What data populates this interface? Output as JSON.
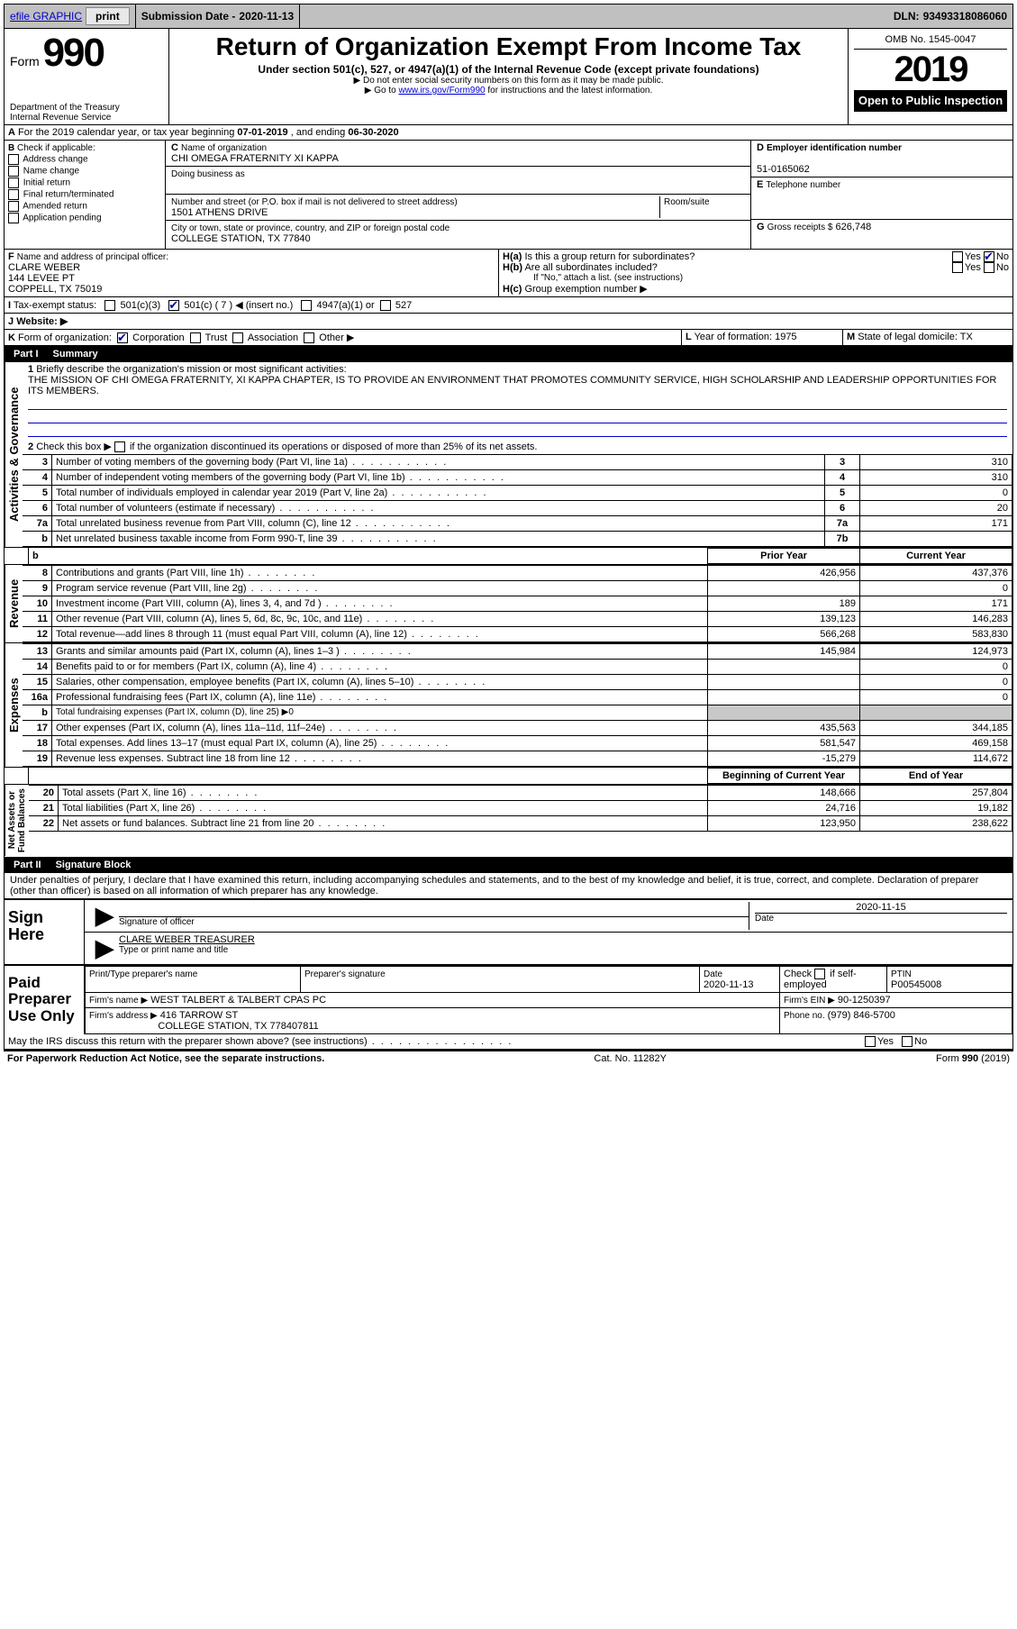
{
  "topbar": {
    "efile": "efile GRAPHIC",
    "print": "print",
    "subdate_label": "Submission Date -",
    "subdate": "2020-11-13",
    "dln_label": "DLN:",
    "dln": "93493318086060"
  },
  "header": {
    "form_label": "Form",
    "form_num": "990",
    "dept": "Department of the Treasury\nInternal Revenue Service",
    "title": "Return of Organization Exempt From Income Tax",
    "sub1": "Under section 501(c), 527, or 4947(a)(1) of the Internal Revenue Code (except private foundations)",
    "sub2": "Do not enter social security numbers on this form as it may be made public.",
    "sub3_pre": "Go to ",
    "sub3_link": "www.irs.gov/Form990",
    "sub3_post": " for instructions and the latest information.",
    "omb": "OMB No. 1545-0047",
    "year": "2019",
    "openpub": "Open to Public Inspection"
  },
  "A": {
    "text_pre": "For the 2019 calendar year, or tax year beginning ",
    "begin": "07-01-2019",
    "text_mid": " , and ending ",
    "end": "06-30-2020"
  },
  "B": {
    "label": "Check if applicable:",
    "opts": {
      "addr": "Address change",
      "name": "Name change",
      "init": "Initial return",
      "final": "Final return/terminated",
      "amend": "Amended return",
      "app": "Application pending"
    }
  },
  "C": {
    "name_label": "Name of organization",
    "name": "CHI OMEGA FRATERNITY XI KAPPA",
    "dba_label": "Doing business as",
    "dba": "",
    "addr_label": "Number and street (or P.O. box if mail is not delivered to street address)",
    "room_label": "Room/suite",
    "addr": "1501 ATHENS DRIVE",
    "city_label": "City or town, state or province, country, and ZIP or foreign postal code",
    "city": "COLLEGE STATION, TX  77840"
  },
  "D": {
    "label": "Employer identification number",
    "val": "51-0165062"
  },
  "E": {
    "label": "Telephone number",
    "val": ""
  },
  "G": {
    "label": "Gross receipts $",
    "val": "626,748"
  },
  "F": {
    "label": "Name and address of principal officer:",
    "name": "CLARE WEBER",
    "addr1": "144 LEVEE PT",
    "addr2": "COPPELL, TX  75019"
  },
  "H": {
    "a": "Is this a group return for subordinates?",
    "b": "Are all subordinates included?",
    "b_note": "If \"No,\" attach a list. (see instructions)",
    "c": "Group exemption number ▶",
    "yes": "Yes",
    "no": "No"
  },
  "I": {
    "label": "Tax-exempt status:",
    "c3": "501(c)(3)",
    "c": "501(c) ( 7 ) ◀ (insert no.)",
    "a1": "4947(a)(1) or",
    "s527": "527"
  },
  "J": {
    "label": "Website: ▶",
    "val": ""
  },
  "K": {
    "label": "Form of organization:",
    "corp": "Corporation",
    "trust": "Trust",
    "assoc": "Association",
    "other": "Other ▶"
  },
  "L": {
    "label": "Year of formation:",
    "val": "1975"
  },
  "M": {
    "label": "State of legal domicile:",
    "val": "TX"
  },
  "part1": {
    "hdr_num": "Part I",
    "hdr_title": "Summary",
    "l1_label": "Briefly describe the organization's mission or most significant activities:",
    "l1_text": "THE MISSION OF CHI OMEGA FRATERNITY, XI KAPPA CHAPTER, IS TO PROVIDE AN ENVIRONMENT THAT PROMOTES COMMUNITY SERVICE, HIGH SCHOLARSHIP AND LEADERSHIP OPPORTUNITIES FOR ITS MEMBERS.",
    "l2": "Check this box ▶        if the organization discontinued its operations or disposed of more than 25% of its net assets.",
    "rows_ag": [
      {
        "n": "3",
        "d": "Number of voting members of the governing body (Part VI, line 1a)",
        "box": "3",
        "v": "310"
      },
      {
        "n": "4",
        "d": "Number of independent voting members of the governing body (Part VI, line 1b)",
        "box": "4",
        "v": "310"
      },
      {
        "n": "5",
        "d": "Total number of individuals employed in calendar year 2019 (Part V, line 2a)",
        "box": "5",
        "v": "0"
      },
      {
        "n": "6",
        "d": "Total number of volunteers (estimate if necessary)",
        "box": "6",
        "v": "20"
      },
      {
        "n": "7a",
        "d": "Total unrelated business revenue from Part VIII, column (C), line 12",
        "box": "7a",
        "v": "171"
      },
      {
        "n": "b",
        "d": "Net unrelated business taxable income from Form 990-T, line 39",
        "box": "7b",
        "v": ""
      }
    ],
    "py": "Prior Year",
    "cy": "Current Year",
    "rows_rev": [
      {
        "n": "8",
        "d": "Contributions and grants (Part VIII, line 1h)",
        "py": "426,956",
        "cy": "437,376"
      },
      {
        "n": "9",
        "d": "Program service revenue (Part VIII, line 2g)",
        "py": "",
        "cy": "0"
      },
      {
        "n": "10",
        "d": "Investment income (Part VIII, column (A), lines 3, 4, and 7d )",
        "py": "189",
        "cy": "171"
      },
      {
        "n": "11",
        "d": "Other revenue (Part VIII, column (A), lines 5, 6d, 8c, 9c, 10c, and 11e)",
        "py": "139,123",
        "cy": "146,283"
      },
      {
        "n": "12",
        "d": "Total revenue—add lines 8 through 11 (must equal Part VIII, column (A), line 12)",
        "py": "566,268",
        "cy": "583,830"
      }
    ],
    "rows_exp": [
      {
        "n": "13",
        "d": "Grants and similar amounts paid (Part IX, column (A), lines 1–3 )",
        "py": "145,984",
        "cy": "124,973"
      },
      {
        "n": "14",
        "d": "Benefits paid to or for members (Part IX, column (A), line 4)",
        "py": "",
        "cy": "0"
      },
      {
        "n": "15",
        "d": "Salaries, other compensation, employee benefits (Part IX, column (A), lines 5–10)",
        "py": "",
        "cy": "0"
      },
      {
        "n": "16a",
        "d": "Professional fundraising fees (Part IX, column (A), line 11e)",
        "py": "",
        "cy": "0"
      },
      {
        "n": "b",
        "d": "Total fundraising expenses (Part IX, column (D), line 25) ▶0",
        "py": "SHADE",
        "cy": "SHADE"
      },
      {
        "n": "17",
        "d": "Other expenses (Part IX, column (A), lines 11a–11d, 11f–24e)",
        "py": "435,563",
        "cy": "344,185"
      },
      {
        "n": "18",
        "d": "Total expenses. Add lines 13–17 (must equal Part IX, column (A), line 25)",
        "py": "581,547",
        "cy": "469,158"
      },
      {
        "n": "19",
        "d": "Revenue less expenses. Subtract line 18 from line 12",
        "py": "-15,279",
        "cy": "114,672"
      }
    ],
    "boy": "Beginning of Current Year",
    "eoy": "End of Year",
    "rows_na": [
      {
        "n": "20",
        "d": "Total assets (Part X, line 16)",
        "py": "148,666",
        "cy": "257,804"
      },
      {
        "n": "21",
        "d": "Total liabilities (Part X, line 26)",
        "py": "24,716",
        "cy": "19,182"
      },
      {
        "n": "22",
        "d": "Net assets or fund balances. Subtract line 21 from line 20",
        "py": "123,950",
        "cy": "238,622"
      }
    ],
    "side_ag": "Activities & Governance",
    "side_rev": "Revenue",
    "side_exp": "Expenses",
    "side_na": "Net Assets or\nFund Balances"
  },
  "part2": {
    "hdr_num": "Part II",
    "hdr_title": "Signature Block",
    "decl": "Under penalties of perjury, I declare that I have examined this return, including accompanying schedules and statements, and to the best of my knowledge and belief, it is true, correct, and complete. Declaration of preparer (other than officer) is based on all information of which preparer has any knowledge.",
    "sign_here": "Sign Here",
    "sig_officer": "Signature of officer",
    "sig_date_label": "Date",
    "sig_date": "2020-11-15",
    "sig_name": "CLARE WEBER TREASURER",
    "sig_name_label": "Type or print name and title",
    "paid": "Paid Preparer Use Only",
    "prep_name_label": "Print/Type preparer's name",
    "prep_sig_label": "Preparer's signature",
    "prep_date_label": "Date",
    "prep_date": "2020-11-13",
    "prep_self": "Check       if self-employed",
    "ptin_label": "PTIN",
    "ptin": "P00545008",
    "firm_name_label": "Firm's name    ▶",
    "firm_name": "WEST TALBERT & TALBERT CPAS PC",
    "firm_ein_label": "Firm's EIN ▶",
    "firm_ein": "90-1250397",
    "firm_addr_label": "Firm's address ▶",
    "firm_addr1": "416 TARROW ST",
    "firm_addr2": "COLLEGE STATION, TX  778407811",
    "firm_phone_label": "Phone no.",
    "firm_phone": "(979) 846-5700",
    "discuss": "May the IRS discuss this return with the preparer shown above? (see instructions)"
  },
  "footer": {
    "pra": "For Paperwork Reduction Act Notice, see the separate instructions.",
    "cat": "Cat. No. 11282Y",
    "form": "Form 990 (2019)"
  }
}
